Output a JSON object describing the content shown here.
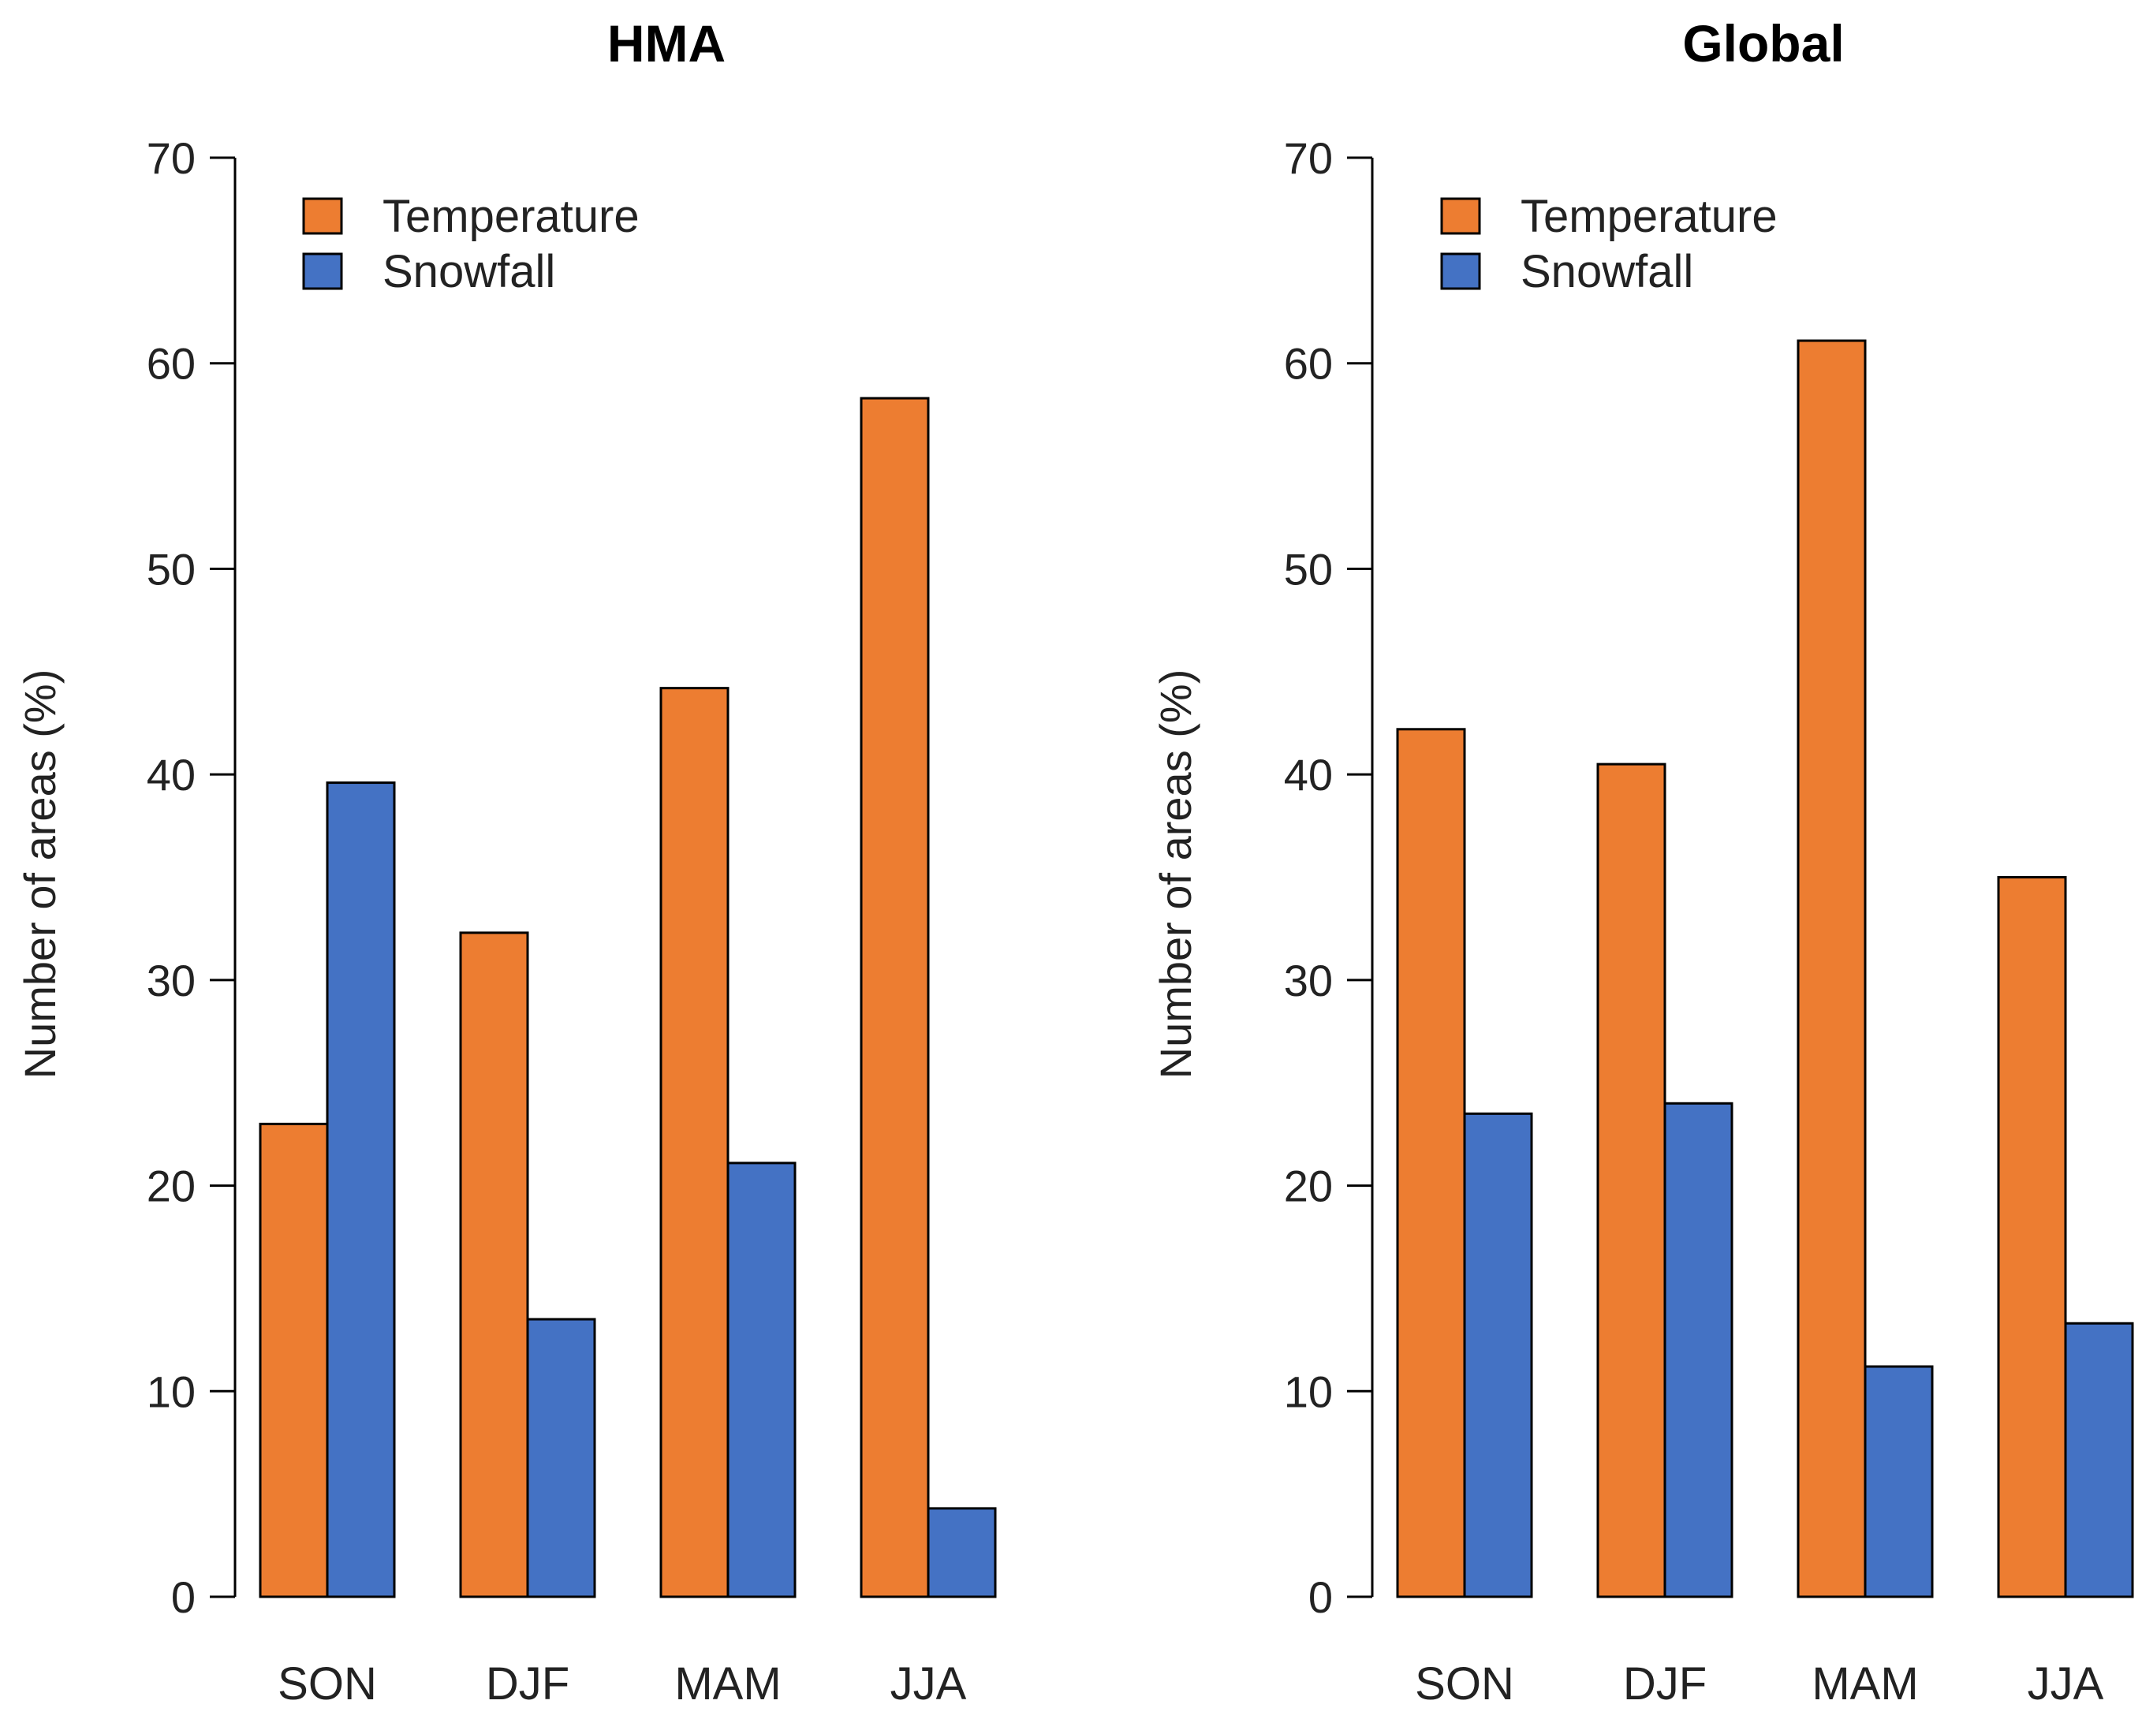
{
  "chart_data": [
    {
      "type": "bar",
      "title": "HMA",
      "xlabel": "",
      "ylabel": "Number of areas (%)",
      "ylim": [
        0,
        70
      ],
      "yticks": [
        0,
        10,
        20,
        30,
        40,
        50,
        60,
        70
      ],
      "categories": [
        "SON",
        "DJF",
        "MAM",
        "JJA"
      ],
      "legend_position": "top-left",
      "series": [
        {
          "name": "Temperature",
          "color": "#ED7D31",
          "values": [
            23.0,
            32.3,
            44.2,
            58.3
          ]
        },
        {
          "name": "Snowfall",
          "color": "#4472C4",
          "values": [
            39.6,
            13.5,
            21.1,
            4.3
          ]
        }
      ]
    },
    {
      "type": "bar",
      "title": "Global",
      "xlabel": "",
      "ylabel": "Number of areas (%)",
      "ylim": [
        0,
        70
      ],
      "yticks": [
        0,
        10,
        20,
        30,
        40,
        50,
        60,
        70
      ],
      "categories": [
        "SON",
        "DJF",
        "MAM",
        "JJA"
      ],
      "legend_position": "top-left",
      "series": [
        {
          "name": "Temperature",
          "color": "#ED7D31",
          "values": [
            42.2,
            40.5,
            61.1,
            35.0
          ]
        },
        {
          "name": "Snowfall",
          "color": "#4472C4",
          "values": [
            23.5,
            24.0,
            11.2,
            13.3
          ]
        }
      ]
    }
  ]
}
